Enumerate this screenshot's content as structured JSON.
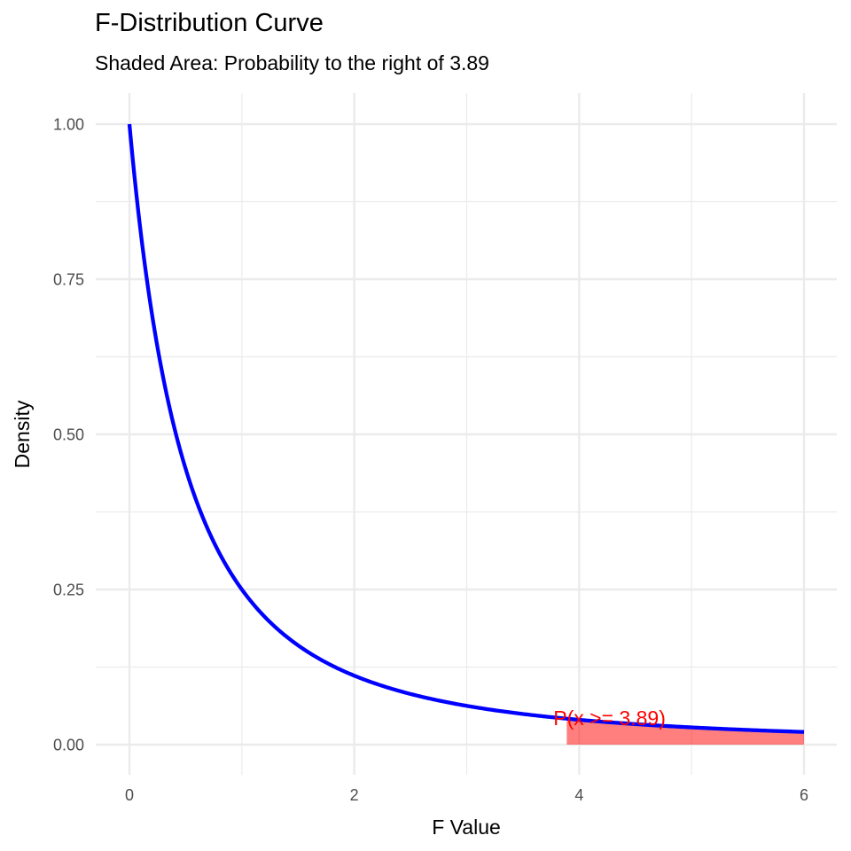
{
  "chart_data": {
    "type": "area",
    "title": "F-Distribution Curve",
    "subtitle": "Shaded Area: Probability to the right of 3.89",
    "xlabel": "F Value",
    "ylabel": "Density",
    "xlim": [
      0,
      6
    ],
    "ylim": [
      0,
      1
    ],
    "x_ticks": [
      0,
      2,
      4,
      6
    ],
    "x_tick_labels": [
      "0",
      "2",
      "4",
      "6"
    ],
    "y_ticks": [
      0,
      0.25,
      0.5,
      0.75,
      1
    ],
    "y_tick_labels": [
      "0.00",
      "0.25",
      "0.50",
      "0.75",
      "1.00"
    ],
    "grid": true,
    "series": [
      {
        "type": "line",
        "color": "#0000ff",
        "x": [
          0,
          0.25,
          0.5,
          0.75,
          1,
          1.25,
          1.5,
          1.75,
          2,
          2.5,
          3,
          3.5,
          3.89,
          4,
          4.5,
          5,
          5.5,
          6
        ],
        "y": [
          1,
          0.64,
          0.444,
          0.328,
          0.25,
          0.198,
          0.16,
          0.132,
          0.111,
          0.082,
          0.0625,
          0.0494,
          0.0417,
          0.04,
          0.0331,
          0.0278,
          0.0237,
          0.0204
        ]
      },
      {
        "type": "area",
        "color": "#ff0000",
        "x": [
          3.89,
          4,
          4.5,
          5,
          5.5,
          6
        ],
        "y": [
          0.0417,
          0.04,
          0.0331,
          0.0278,
          0.0237,
          0.0204
        ]
      }
    ],
    "annotations": [
      {
        "text": "P(x >= 3.89)",
        "x": 4.27,
        "y": 0.043,
        "color": "#ff0000"
      }
    ]
  }
}
